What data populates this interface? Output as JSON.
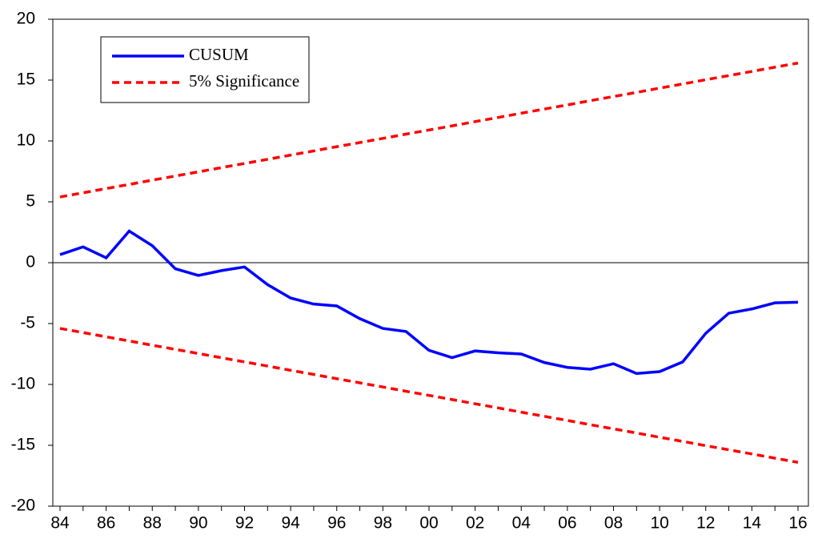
{
  "chart_data": {
    "type": "line",
    "categories": [
      "84",
      null,
      "86",
      null,
      "88",
      null,
      "90",
      null,
      "92",
      null,
      "94",
      null,
      "96",
      null,
      "98",
      null,
      "00",
      null,
      "02",
      null,
      "04",
      null,
      "06",
      null,
      "08",
      null,
      "10",
      null,
      "12",
      null,
      "14",
      null,
      "16"
    ],
    "series": [
      {
        "name": "CUSUM",
        "color": "#0000ff",
        "dash": false,
        "values": [
          0.66,
          1.3,
          0.4,
          2.6,
          1.4,
          -0.5,
          -1.05,
          -0.65,
          -0.35,
          -1.8,
          -2.9,
          -3.4,
          -3.55,
          -4.6,
          -5.4,
          -5.65,
          -7.2,
          -7.8,
          -7.25,
          -7.4,
          -7.5,
          -8.2,
          -8.6,
          -8.75,
          -8.3,
          -9.1,
          -8.95,
          -8.15,
          -5.8,
          -4.15,
          -3.8,
          -3.3,
          -3.25
        ]
      },
      {
        "name": "5% Significance",
        "color": "#ff0000",
        "dash": true,
        "values": [
          5.4,
          5.74,
          6.09,
          6.43,
          6.78,
          7.12,
          7.46,
          7.81,
          8.15,
          8.49,
          8.84,
          9.18,
          9.53,
          9.87,
          10.21,
          10.56,
          10.9,
          11.24,
          11.59,
          11.93,
          12.28,
          12.62,
          12.96,
          13.31,
          13.65,
          13.99,
          14.34,
          14.68,
          15.03,
          15.37,
          15.71,
          16.06,
          16.4
        ]
      },
      {
        "color": "#ff0000",
        "dash": true,
        "values": [
          -5.4,
          -5.74,
          -6.09,
          -6.43,
          -6.78,
          -7.12,
          -7.46,
          -7.81,
          -8.15,
          -8.49,
          -8.84,
          -9.18,
          -9.53,
          -9.87,
          -10.21,
          -10.56,
          -10.9,
          -11.24,
          -11.59,
          -11.93,
          -12.28,
          -12.62,
          -12.96,
          -13.31,
          -13.65,
          -13.99,
          -14.34,
          -14.68,
          -15.03,
          -15.37,
          -15.71,
          -16.06,
          -16.4
        ]
      }
    ],
    "ylim": [
      -20,
      20
    ],
    "yticks": [
      -20,
      -15,
      -10,
      -5,
      0,
      5,
      10,
      15,
      20
    ],
    "grid": false,
    "legend": "top-left"
  }
}
